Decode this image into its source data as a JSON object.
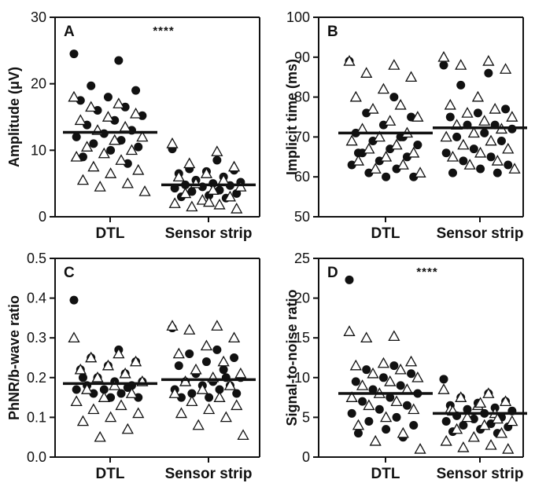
{
  "chart_data": [
    {
      "type": "scatter",
      "panel": "A",
      "significance": "****",
      "ylabel": "Amplitude (μV)",
      "ylim": [
        0,
        30
      ],
      "yticks": [
        0,
        10,
        20,
        30
      ],
      "categories": [
        "DTL",
        "Sensor strip"
      ],
      "means": [
        12.7,
        4.8
      ],
      "series": [
        {
          "marker": "filled-circle",
          "groups": [
            [
              24.5,
              23.5,
              19.7,
              19.0,
              18.0,
              17.5,
              16.5,
              16.0,
              15.2,
              14.5,
              13.8,
              13.0,
              12.5,
              12.0,
              11.5,
              11.0,
              10.5,
              10.0,
              9.0,
              8.0
            ],
            [
              10.2,
              8.5,
              7.2,
              7.0,
              6.8,
              6.5,
              6.0,
              5.5,
              5.2,
              5.0,
              4.8,
              4.7,
              4.5,
              4.3,
              4.0,
              3.8,
              3.5,
              3.2,
              3.0,
              2.8
            ]
          ]
        },
        {
          "marker": "open-triangle",
          "groups": [
            [
              18.0,
              17.0,
              16.5,
              15.5,
              15.0,
              14.5,
              13.5,
              13.0,
              12.0,
              11.5,
              10.5,
              10.0,
              9.5,
              9.0,
              8.5,
              7.5,
              7.0,
              6.5,
              5.5,
              5.0,
              4.5,
              3.8
            ],
            [
              11.0,
              9.8,
              8.0,
              7.5,
              6.5,
              6.0,
              5.5,
              5.0,
              4.5,
              4.0,
              3.5,
              3.0,
              2.5,
              2.0,
              1.8,
              1.5,
              1.2,
              2.2
            ]
          ]
        }
      ]
    },
    {
      "type": "scatter",
      "panel": "B",
      "significance": "",
      "ylabel": "Implicit time (ms)",
      "ylim": [
        50,
        100
      ],
      "yticks": [
        50,
        60,
        70,
        80,
        90,
        100
      ],
      "categories": [
        "DTL",
        "Sensor strip"
      ],
      "means": [
        71,
        72.3
      ],
      "series": [
        {
          "marker": "filled-circle",
          "groups": [
            [
              89,
              80,
              76,
              75,
              73,
              71,
              70,
              69,
              68,
              67,
              66,
              65,
              64,
              63,
              62,
              61,
              60,
              60,
              66,
              70
            ],
            [
              88,
              86,
              83,
              77,
              76,
              75,
              73,
              73,
              72,
              71,
              70,
              69,
              67,
              66,
              65,
              64,
              63,
              62,
              61,
              61
            ]
          ]
        },
        {
          "marker": "open-triangle",
          "groups": [
            [
              89,
              88,
              86,
              85,
              82,
              80,
              78,
              77,
              75,
              74,
              72,
              71,
              70,
              69,
              68,
              67,
              66,
              65,
              64,
              63,
              62,
              61
            ],
            [
              90,
              89,
              88,
              87,
              80,
              78,
              77,
              76,
              75,
              74,
              73,
              72,
              71,
              70,
              69,
              68,
              67,
              66,
              65,
              64,
              63,
              62
            ]
          ]
        }
      ]
    },
    {
      "type": "scatter",
      "panel": "C",
      "significance": "",
      "ylabel": "PhNR/b-wave ratio",
      "ylim": [
        0.0,
        0.5
      ],
      "yticks": [
        0.0,
        0.1,
        0.2,
        0.3,
        0.4,
        0.5
      ],
      "categories": [
        "DTL",
        "Sensor strip"
      ],
      "means": [
        0.185,
        0.195
      ],
      "series": [
        {
          "marker": "filled-circle",
          "groups": [
            [
              0.395,
              0.27,
              0.25,
              0.24,
              0.23,
              0.22,
              0.21,
              0.2,
              0.19,
              0.19,
              0.18,
              0.18,
              0.17,
              0.17,
              0.16,
              0.16,
              0.15,
              0.15,
              0.2,
              0.175
            ],
            [
              0.325,
              0.27,
              0.26,
              0.25,
              0.24,
              0.23,
              0.22,
              0.21,
              0.2,
              0.19,
              0.19,
              0.18,
              0.18,
              0.17,
              0.17,
              0.16,
              0.16,
              0.15,
              0.15,
              0.2
            ]
          ]
        },
        {
          "marker": "open-triangle",
          "groups": [
            [
              0.3,
              0.26,
              0.25,
              0.24,
              0.23,
              0.22,
              0.21,
              0.2,
              0.19,
              0.18,
              0.17,
              0.16,
              0.15,
              0.14,
              0.13,
              0.12,
              0.11,
              0.1,
              0.09,
              0.07,
              0.05
            ],
            [
              0.33,
              0.33,
              0.32,
              0.3,
              0.28,
              0.26,
              0.24,
              0.22,
              0.21,
              0.2,
              0.19,
              0.18,
              0.17,
              0.16,
              0.15,
              0.14,
              0.13,
              0.12,
              0.11,
              0.1,
              0.08,
              0.055
            ]
          ]
        }
      ]
    },
    {
      "type": "scatter",
      "panel": "D",
      "significance": "****",
      "ylabel": "Signal-to-noise ratio",
      "ylim": [
        0,
        25
      ],
      "yticks": [
        0,
        5,
        10,
        15,
        20,
        25
      ],
      "categories": [
        "DTL",
        "Sensor strip"
      ],
      "means": [
        8.0,
        5.5
      ],
      "series": [
        {
          "marker": "filled-circle",
          "groups": [
            [
              22.3,
              11.5,
              11.0,
              10.5,
              10.0,
              9.5,
              9.0,
              8.5,
              8.0,
              7.5,
              7.0,
              6.5,
              6.0,
              5.5,
              5.0,
              4.5,
              4.0,
              3.5,
              3.0,
              2.5
            ],
            [
              9.8,
              8.0,
              7.5,
              7.0,
              6.8,
              6.5,
              6.2,
              6.0,
              5.8,
              5.5,
              5.2,
              5.0,
              4.8,
              4.5,
              4.2,
              4.0,
              3.8,
              3.5,
              3.2,
              3.0
            ]
          ]
        },
        {
          "marker": "open-triangle",
          "groups": [
            [
              15.8,
              15.2,
              15.0,
              12.0,
              11.8,
              11.5,
              11.0,
              10.5,
              10.0,
              9.5,
              9.0,
              8.5,
              8.0,
              7.5,
              7.0,
              6.5,
              6.0,
              5.0,
              4.0,
              3.0,
              2.0,
              1.0
            ],
            [
              8.5,
              8.0,
              7.5,
              7.0,
              6.5,
              6.0,
              5.5,
              5.0,
              4.5,
              4.0,
              3.5,
              3.0,
              2.5,
              2.0,
              1.5,
              1.2,
              1.0,
              6.8,
              5.8,
              4.8
            ]
          ]
        }
      ]
    }
  ]
}
